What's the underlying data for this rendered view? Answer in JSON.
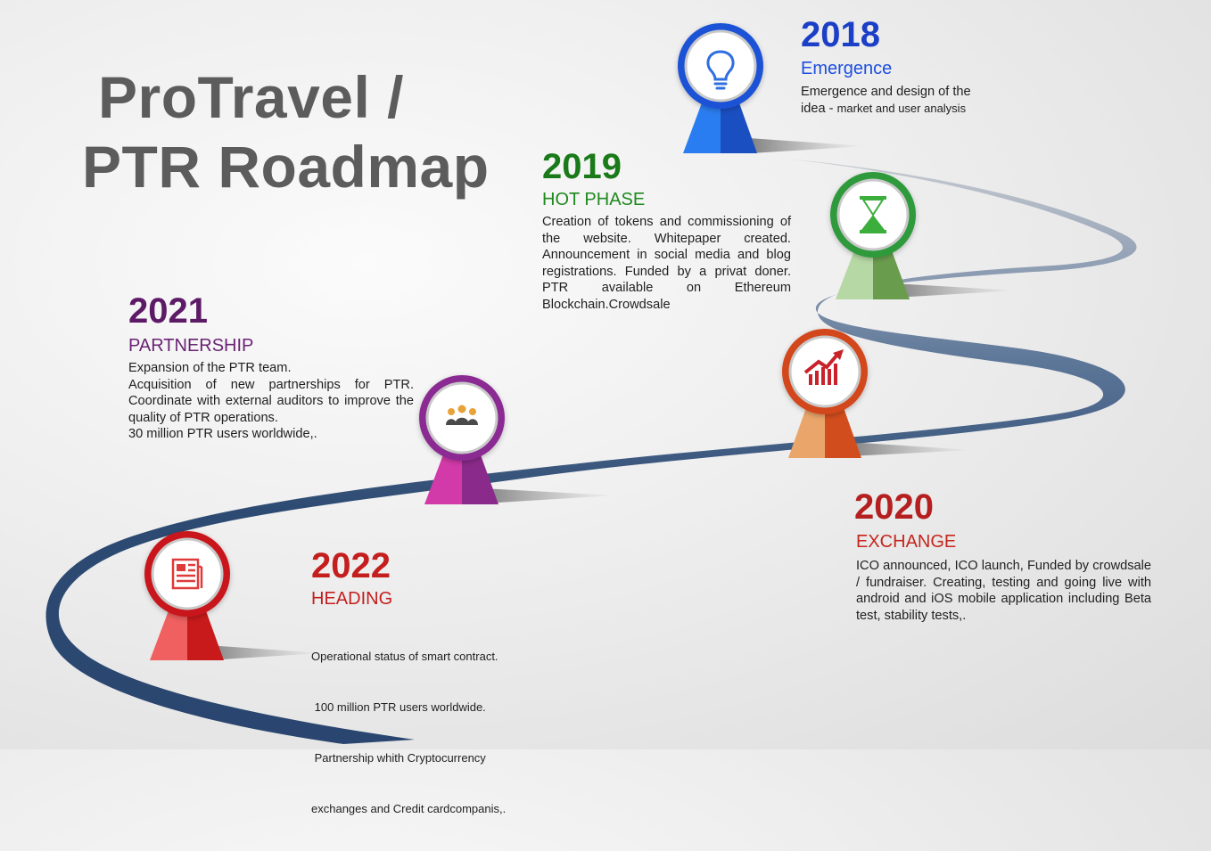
{
  "title": {
    "line1": "ProTravel /",
    "line2": "PTR Roadmap"
  },
  "milestones": [
    {
      "year": "2018",
      "phase": "Emergence",
      "desc_a": "Emergence and design of the",
      "desc_b_part1": "idea - ",
      "desc_b_part2": " market and user analysis",
      "icon": "lightbulb-icon",
      "colors": {
        "year": "#1b3fc6",
        "phase": "#1d4ee0",
        "ring": "#1c52d6",
        "pin_light": "#2a7df0",
        "pin_dark": "#1a4fc2"
      }
    },
    {
      "year": "2019",
      "phase": "HOT PHASE",
      "desc": "Creation of tokens and commissioning of the website. Whitepaper created. Announcement in social media and blog registrations. Funded by a privat doner. PTR available on Ethereum Blockchain.Crowdsale",
      "icon": "hourglass-icon",
      "colors": {
        "year": "#1a7a1a",
        "phase": "#1e8a1e",
        "ring": "#2e9a3a",
        "pin_light": "#b6d8a4",
        "pin_dark": "#6a9c4e"
      }
    },
    {
      "year": "2020",
      "phase": "EXCHANGE",
      "desc": "ICO announced, ICO launch, Funded by crowdsale / fundraiser. Creating, testing and going live with android and iOS mobile application including Beta test, stability tests,.",
      "icon": "growth-chart-icon",
      "colors": {
        "year": "#b51f1f",
        "phase": "#c4271e",
        "ring": "#d2471b",
        "pin_light": "#eaa56a",
        "pin_dark": "#d24d1d"
      }
    },
    {
      "year": "2021",
      "phase": "PARTNERSHIP",
      "desc_lines": [
        "Expansion of the PTR team.",
        "Acquisition of new partnerships for PTR. Coordinate with external auditors to improve the quality of PTR operations.",
        "30 million PTR users worldwide,."
      ],
      "icon": "team-icon",
      "colors": {
        "year": "#5d1a66",
        "phase": "#6a2374",
        "ring": "#8a2a92",
        "pin_light": "#d23aa9",
        "pin_dark": "#8a2a8a"
      }
    },
    {
      "year": "2022",
      "phase": "HEADING",
      "desc_lines": [
        "Operational status of smart contract.",
        " 100 million PTR users worldwide.",
        " Partnership whith Cryptocurrency",
        "exchanges and Credit cardcompanis,."
      ],
      "icon": "newspaper-icon",
      "colors": {
        "year": "#c41e1e",
        "phase": "#c41e1e",
        "ring": "#c8191e",
        "pin_light": "#f06060",
        "pin_dark": "#c81a1a"
      }
    }
  ],
  "road_color": "#2d4a72"
}
